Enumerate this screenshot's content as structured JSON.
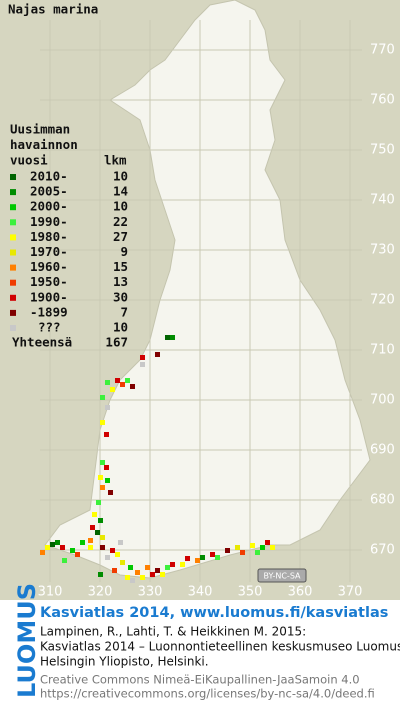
{
  "title": "Najas marina",
  "legend": {
    "header": [
      "Uusimman",
      "havainnon",
      "vuosi"
    ],
    "count_header": "lkm",
    "rows": [
      {
        "label": "2010-",
        "count": 10,
        "color": "#006400"
      },
      {
        "label": "2005-",
        "count": 14,
        "color": "#008c00"
      },
      {
        "label": "2000-",
        "count": 10,
        "color": "#00c800"
      },
      {
        "label": "1990-",
        "count": 22,
        "color": "#3cf03c"
      },
      {
        "label": "1980-",
        "count": 27,
        "color": "#ffff00"
      },
      {
        "label": "1970-",
        "count": 9,
        "color": "#e8e800"
      },
      {
        "label": "1960-",
        "count": 15,
        "color": "#ff8000"
      },
      {
        "label": "1950-",
        "count": 13,
        "color": "#f03c00"
      },
      {
        "label": "1900-",
        "count": 30,
        "color": "#d00000"
      },
      {
        "label": "-1899",
        "count": 7,
        "color": "#800000"
      },
      {
        "label": "???",
        "count": 10,
        "color": "#c8c8c8"
      }
    ],
    "total_label": "Yhteensä",
    "total": 167
  },
  "map": {
    "xticks": [
      310,
      320,
      330,
      340,
      350,
      360,
      370
    ],
    "yticks": [
      770,
      760,
      750,
      740,
      730,
      720,
      710,
      700,
      690,
      680,
      670
    ],
    "license_badge": "BY-NC-SA"
  },
  "footer": {
    "logo": "LUOMUS",
    "heading": "Kasviatlas 2014, www.luomus.fi/kasviatlas",
    "citation": [
      "Lampinen, R., Lahti, T. & Heikkinen M. 2015:",
      "Kasviatlas 2014 – Luonnontieteellinen keskusmuseo Luomus,",
      "Helsingin Yliopisto, Helsinki."
    ],
    "license": [
      "Creative Commons Nimeä-EiKaupallinen-JaaSamoin 4.0",
      "https://creativecommons.org/licenses/by-nc-sa/4.0/deed.fi"
    ]
  }
}
